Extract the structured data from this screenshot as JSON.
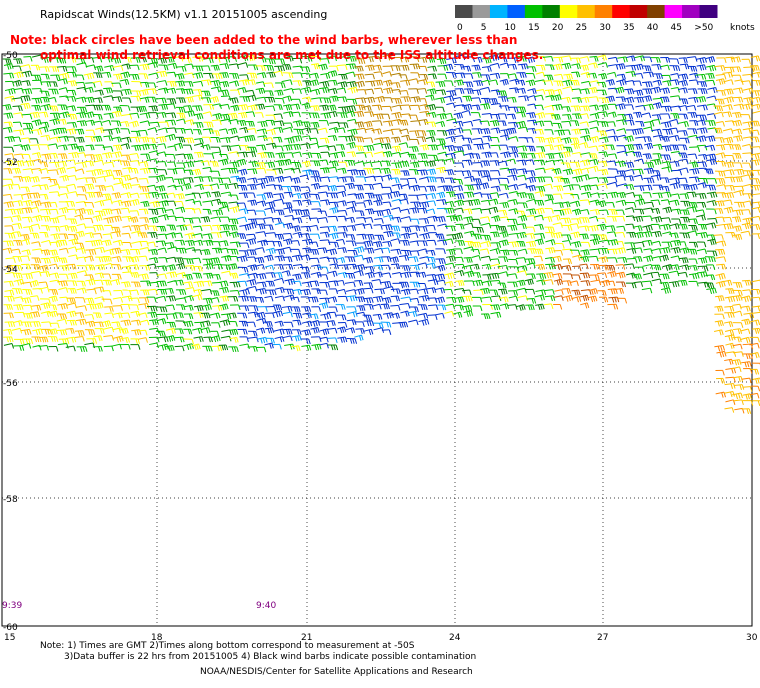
{
  "header": {
    "title": "Rapidscat Winds(12.5KM) v1.1 20151005 ascending",
    "note_line1": "Note: black circles have been added to the wind barbs, wherever less than",
    "note_line2": "optimal wind retrieval conditions are met due to the ISS altitude changes."
  },
  "color_scale": {
    "unit": "knots",
    "ticks": [
      "0",
      "5",
      "10",
      "15",
      "20",
      "25",
      "30",
      "35",
      "40",
      "45",
      ">50"
    ],
    "colors": [
      "#4a4a4a",
      "#9a9a9a",
      "#00b4ff",
      "#0060ff",
      "#00c000",
      "#008000",
      "#ffff00",
      "#ffc000",
      "#ff8000",
      "#ff0000",
      "#c00000",
      "#804000",
      "#ff00ff",
      "#a000c0",
      "#400080"
    ]
  },
  "map": {
    "lat_labels": [
      "-50",
      "-52",
      "-54",
      "-56",
      "-58",
      "-60"
    ],
    "lon_labels": [
      "15",
      "18",
      "21",
      "24",
      "27",
      "30"
    ],
    "time_labels": [
      "9:39",
      "9:40"
    ]
  },
  "footer": {
    "footnote_line1": "Note: 1) Times are GMT 2)Times along bottom correspond to measurement at -50S",
    "footnote_line2": "3)Data buffer is 22 hrs from 20151005 4) Black wind barbs indicate possible contamination",
    "credit": "NOAA/NESDIS/Center for Satellite Applications and Research"
  }
}
